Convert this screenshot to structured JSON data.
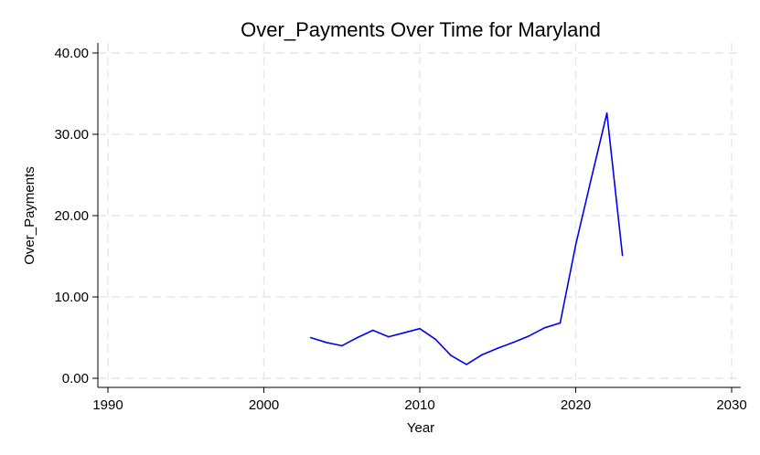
{
  "chart_data": {
    "type": "line",
    "title": "Over_Payments Over Time for Maryland",
    "xlabel": "Year",
    "ylabel": "Over_Payments",
    "xlim": [
      1990,
      2030
    ],
    "ylim": [
      0,
      40
    ],
    "xticks": [
      1990,
      2000,
      2010,
      2020,
      2030
    ],
    "yticks": [
      0,
      10,
      20,
      30,
      40
    ],
    "ytick_labels": [
      "0.00",
      "10.00",
      "20.00",
      "30.00",
      "40.00"
    ],
    "grid": true,
    "series": [
      {
        "color": "#0000ee",
        "x": [
          2003,
          2004,
          2005,
          2006,
          2007,
          2008,
          2009,
          2010,
          2011,
          2012,
          2013,
          2014,
          2015,
          2016,
          2017,
          2018,
          2019,
          2020,
          2021,
          2022,
          2023
        ],
        "y": [
          5.0,
          4.4,
          4.0,
          5.0,
          5.9,
          5.1,
          5.6,
          6.1,
          4.8,
          2.8,
          1.7,
          2.9,
          3.7,
          4.4,
          5.2,
          6.2,
          6.8,
          16.4,
          24.6,
          32.6,
          15.1
        ]
      }
    ]
  }
}
